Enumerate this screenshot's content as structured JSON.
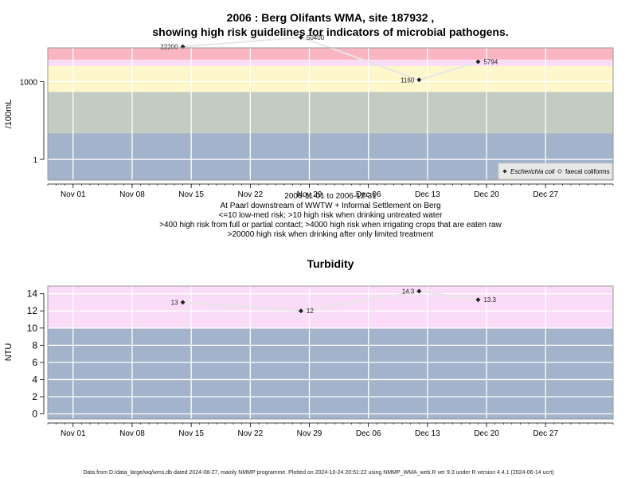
{
  "chart_data": [
    {
      "type": "line",
      "title_line1": "2006 : Berg Olifants WMA, site 187932 ,",
      "title_line2": "showing high risk guidelines for indicators of microbial pathogens.",
      "ylabel": "/100mL",
      "y_scale": "log",
      "ylim": [
        0.16,
        20000
      ],
      "y_ticks": [
        1,
        1000
      ],
      "y_tick_labels": [
        "1",
        "1000"
      ],
      "x_ticks": [
        "2006-11-01",
        "2006-11-08",
        "2006-11-15",
        "2006-11-22",
        "2006-11-29",
        "2006-12-06",
        "2006-12-13",
        "2006-12-20",
        "2006-12-27"
      ],
      "x_tick_labels": [
        "Nov 01",
        "Nov 08",
        "Nov 15",
        "Nov 22",
        "Nov 29",
        "Dec 06",
        "Dec 13",
        "Dec 20",
        "Dec 27"
      ],
      "xlim": [
        "2006-10-29",
        "2007-01-04"
      ],
      "bands": [
        {
          "from": 0.16,
          "to": 10,
          "color": "#a3b3cb"
        },
        {
          "from": 10,
          "to": 400,
          "color": "#c3ccc2"
        },
        {
          "from": 400,
          "to": 4000,
          "color": "#fdf7cb"
        },
        {
          "from": 4000,
          "to": 7000,
          "color": "#fbdcf8"
        },
        {
          "from": 7000,
          "to": 20000,
          "color": "#f9b5c1"
        }
      ],
      "series": [
        {
          "name": "Escherichia coli",
          "marker": "filled-diamond",
          "x": [
            "2006-11-14",
            "2006-11-28",
            "2006-12-12",
            "2006-12-19"
          ],
          "y": [
            22200,
            50400,
            1160,
            5794
          ],
          "labels": [
            "22200",
            "50400",
            "1160",
            "5794"
          ]
        },
        {
          "name": "faecal coliforms",
          "marker": "open-diamond",
          "x": [],
          "y": []
        }
      ],
      "legend_position": "bottom-right",
      "xlabel_lines": [
        "2006-11-01 to 2006-12-31",
        "At Paarl downstream of WWTW + Informal Settlement on Berg",
        "<=10 low-med risk; >10 high risk when drinking untreated water",
        ">400 high risk from full or partial contact; >4000 high risk when irrigating crops that are eaten raw",
        ">20000 high risk when drinking after only limited treatment"
      ],
      "grid": true
    },
    {
      "type": "line",
      "title": "Turbidity",
      "ylabel": "NTU",
      "ylim": [
        -0.6,
        14.9
      ],
      "y_ticks": [
        0,
        2,
        4,
        6,
        8,
        10,
        12,
        14
      ],
      "y_tick_labels": [
        "0",
        "2",
        "4",
        "6",
        "8",
        "10",
        "12",
        "14"
      ],
      "x_ticks": [
        "2006-11-01",
        "2006-11-08",
        "2006-11-15",
        "2006-11-22",
        "2006-11-29",
        "2006-12-06",
        "2006-12-13",
        "2006-12-20",
        "2006-12-27"
      ],
      "x_tick_labels": [
        "Nov 01",
        "Nov 08",
        "Nov 15",
        "Nov 22",
        "Nov 29",
        "Dec 06",
        "Dec 13",
        "Dec 20",
        "Dec 27"
      ],
      "xlim": [
        "2006-10-29",
        "2007-01-04"
      ],
      "bands": [
        {
          "from": -0.6,
          "to": 10,
          "color": "#a3b3cb"
        },
        {
          "from": 10,
          "to": 14.9,
          "color": "#fbdcf8"
        }
      ],
      "series": [
        {
          "marker": "filled-diamond",
          "x": [
            "2006-11-14",
            "2006-11-28",
            "2006-12-12",
            "2006-12-19"
          ],
          "y": [
            13,
            12,
            14.3,
            13.3
          ],
          "labels": [
            "13",
            "12",
            "14.3",
            "13.3"
          ]
        }
      ],
      "grid": true
    }
  ],
  "footer": "Data from D:/data_large/wq/wms.db dated 2024-08-27, mainly NMMP programme. Plotted on 2024-10-24 20:51:22 using NMMP_WMA_web.R ver 9.3 under R version 4.4.1 (2024-06-14 ucrt)",
  "colors": {
    "line": "#e6e6e6",
    "grid": "#ffffff",
    "marker": "#222222",
    "frame": "#999999"
  }
}
